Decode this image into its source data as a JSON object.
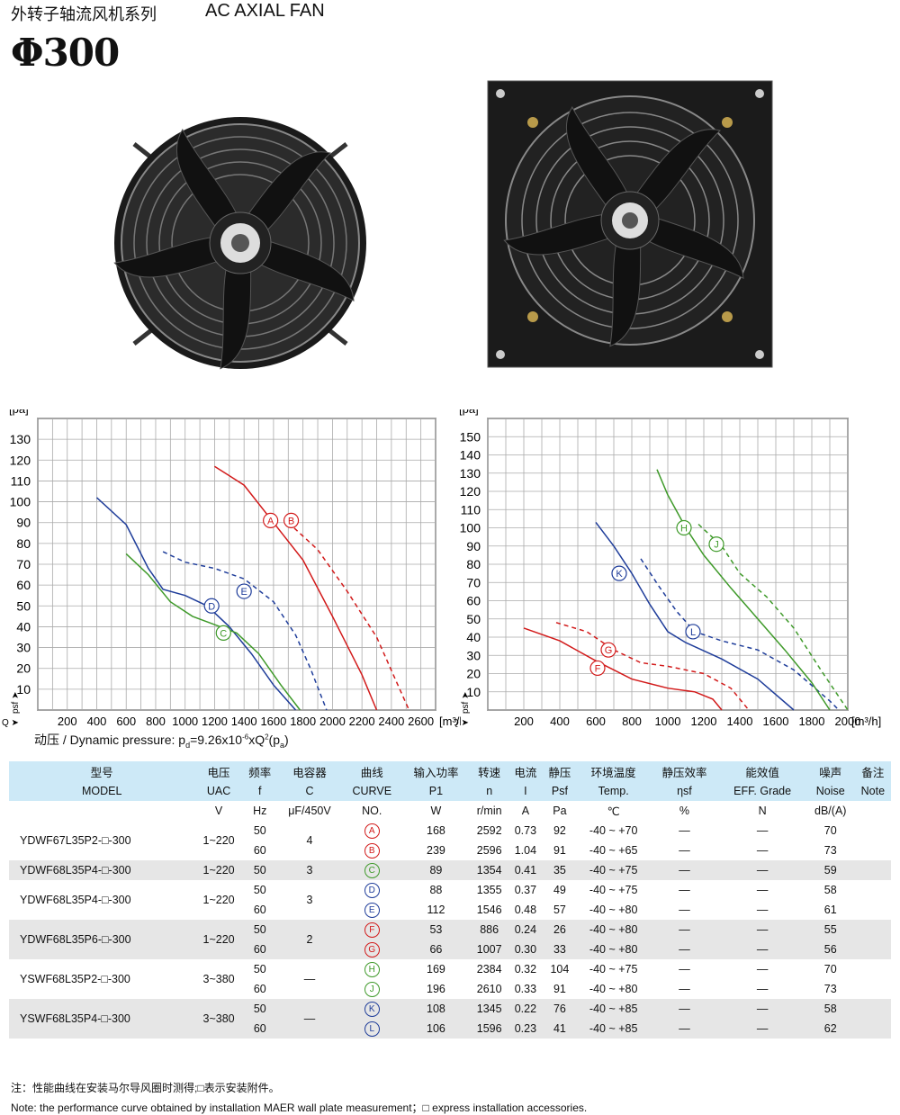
{
  "header": {
    "title_cn": "外转子轴流风机系列",
    "title_en": "AC AXIAL FAN",
    "size": "Φ300"
  },
  "dynamic_pressure": "动压 / Dynamic pressure:  p",
  "dynamic_pressure_sub": "d",
  "dynamic_pressure_formula": "=9.26x10",
  "dynamic_pressure_exp": "-6",
  "dynamic_pressure_formula2": "xQ",
  "dynamic_pressure_exp2": "2",
  "dynamic_pressure_tail": "(p",
  "dynamic_pressure_sub2": "a",
  "dynamic_pressure_end": ")",
  "chart_data": [
    {
      "type": "line",
      "ylabel": "[pa]",
      "ylabel_side": "psf",
      "xlabel": "[m³/h]",
      "xprefix": "Q",
      "yticks": [
        10,
        20,
        30,
        40,
        50,
        60,
        70,
        80,
        90,
        100,
        110,
        120,
        130
      ],
      "xticks": [
        200,
        400,
        600,
        800,
        1000,
        1200,
        1400,
        1600,
        1800,
        2000,
        2200,
        2400,
        2600
      ],
      "xlim": [
        0,
        2700
      ],
      "ylim": [
        0,
        140
      ],
      "series": [
        {
          "name": "A",
          "color": "#d21a1a",
          "dash": false,
          "points": [
            [
              1200,
              117
            ],
            [
              1400,
              108
            ],
            [
              1600,
              90
            ],
            [
              1800,
              72
            ],
            [
              2000,
              45
            ],
            [
              2200,
              17
            ],
            [
              2300,
              0
            ]
          ],
          "label_at": [
            1580,
            91
          ]
        },
        {
          "name": "B",
          "color": "#d21a1a",
          "dash": true,
          "points": [
            [
              1700,
              90
            ],
            [
              1900,
              77
            ],
            [
              2100,
              57
            ],
            [
              2300,
              35
            ],
            [
              2450,
              11
            ],
            [
              2520,
              0
            ]
          ],
          "label_at": [
            1720,
            91
          ]
        },
        {
          "name": "D",
          "color": "#1f3d9a",
          "dash": false,
          "points": [
            [
              400,
              102
            ],
            [
              600,
              89
            ],
            [
              750,
              68
            ],
            [
              850,
              58
            ],
            [
              1000,
              55
            ],
            [
              1150,
              50
            ],
            [
              1300,
              40
            ],
            [
              1450,
              27
            ],
            [
              1600,
              12
            ],
            [
              1750,
              0
            ]
          ],
          "label_at": [
            1180,
            50
          ]
        },
        {
          "name": "E",
          "color": "#1f3d9a",
          "dash": true,
          "points": [
            [
              850,
              76
            ],
            [
              1000,
              71
            ],
            [
              1200,
              68
            ],
            [
              1400,
              63
            ],
            [
              1600,
              52
            ],
            [
              1750,
              36
            ],
            [
              1850,
              20
            ],
            [
              1960,
              0
            ]
          ],
          "label_at": [
            1400,
            57
          ]
        },
        {
          "name": "C",
          "color": "#3f9a2a",
          "dash": false,
          "points": [
            [
              600,
              75
            ],
            [
              750,
              65
            ],
            [
              900,
              52
            ],
            [
              1050,
              45
            ],
            [
              1200,
              41
            ],
            [
              1350,
              37
            ],
            [
              1500,
              27
            ],
            [
              1650,
              12
            ],
            [
              1780,
              0
            ]
          ],
          "label_at": [
            1260,
            37
          ]
        }
      ]
    },
    {
      "type": "line",
      "ylabel": "[pa]",
      "ylabel_side": "psf",
      "xlabel": "[m³/h]",
      "xprefix": "Q",
      "yticks": [
        10,
        20,
        30,
        40,
        50,
        60,
        70,
        80,
        90,
        100,
        110,
        120,
        130,
        140,
        150
      ],
      "xticks": [
        200,
        400,
        600,
        800,
        1000,
        1200,
        1400,
        1600,
        1800,
        2000
      ],
      "xlim": [
        0,
        2000
      ],
      "ylim": [
        0,
        160
      ],
      "series": [
        {
          "name": "F",
          "color": "#d21a1a",
          "dash": false,
          "points": [
            [
              200,
              45
            ],
            [
              400,
              38
            ],
            [
              600,
              27
            ],
            [
              800,
              17
            ],
            [
              1000,
              12
            ],
            [
              1150,
              10
            ],
            [
              1250,
              6
            ],
            [
              1300,
              0
            ]
          ],
          "label_at": [
            610,
            23
          ]
        },
        {
          "name": "G",
          "color": "#d21a1a",
          "dash": true,
          "points": [
            [
              380,
              48
            ],
            [
              550,
              43
            ],
            [
              700,
              33
            ],
            [
              850,
              26
            ],
            [
              1000,
              24
            ],
            [
              1200,
              20
            ],
            [
              1350,
              12
            ],
            [
              1450,
              0
            ]
          ],
          "label_at": [
            670,
            33
          ]
        },
        {
          "name": "K",
          "color": "#1f3d9a",
          "dash": false,
          "points": [
            [
              600,
              103
            ],
            [
              700,
              90
            ],
            [
              800,
              75
            ],
            [
              900,
              58
            ],
            [
              1000,
              43
            ],
            [
              1100,
              37
            ],
            [
              1300,
              28
            ],
            [
              1500,
              17
            ],
            [
              1700,
              0
            ]
          ],
          "label_at": [
            730,
            75
          ]
        },
        {
          "name": "L",
          "color": "#1f3d9a",
          "dash": true,
          "points": [
            [
              850,
              83
            ],
            [
              950,
              68
            ],
            [
              1050,
              54
            ],
            [
              1150,
              43
            ],
            [
              1300,
              38
            ],
            [
              1500,
              33
            ],
            [
              1700,
              22
            ],
            [
              1900,
              5
            ],
            [
              1950,
              0
            ]
          ],
          "label_at": [
            1140,
            43
          ]
        },
        {
          "name": "H",
          "color": "#3f9a2a",
          "dash": false,
          "points": [
            [
              940,
              132
            ],
            [
              1000,
              118
            ],
            [
              1100,
              100
            ],
            [
              1200,
              85
            ],
            [
              1350,
              67
            ],
            [
              1500,
              50
            ],
            [
              1650,
              33
            ],
            [
              1800,
              15
            ],
            [
              1900,
              0
            ]
          ],
          "label_at": [
            1090,
            100
          ]
        },
        {
          "name": "J",
          "color": "#3f9a2a",
          "dash": true,
          "points": [
            [
              1170,
              102
            ],
            [
              1300,
              90
            ],
            [
              1400,
              75
            ],
            [
              1550,
              62
            ],
            [
              1700,
              45
            ],
            [
              1850,
              22
            ],
            [
              2000,
              0
            ]
          ],
          "label_at": [
            1270,
            91
          ]
        }
      ]
    }
  ],
  "table": {
    "head_cn": [
      "型号",
      "电压",
      "频率",
      "电容器",
      "曲线",
      "输入功率",
      "转速",
      "电流",
      "静压",
      "环境温度",
      "静压效率",
      "能效值",
      "噪声",
      "备注"
    ],
    "head_en": [
      "MODEL",
      "UAC",
      "f",
      "C",
      "CURVE",
      "P1",
      "n",
      "I",
      "Psf",
      "Temp.",
      "ηsf",
      "EFF. Grade",
      "Noise",
      "Note"
    ],
    "units": [
      "",
      "V",
      "Hz",
      "μF/450V",
      "NO.",
      "W",
      "r/min",
      "A",
      "Pa",
      "℃",
      "%",
      "N",
      "dB/(A)",
      ""
    ],
    "groups": [
      {
        "model": "YDWF67L35P2-□-300",
        "voltage": "1~220",
        "cap": "4",
        "grey": false,
        "rows": [
          [
            "50",
            "A",
            "168",
            "2592",
            "0.73",
            "92",
            "-40 ~ +70",
            "—",
            "—",
            "70"
          ],
          [
            "60",
            "B",
            "239",
            "2596",
            "1.04",
            "91",
            "-40 ~ +65",
            "—",
            "—",
            "73"
          ]
        ]
      },
      {
        "model": "YDWF68L35P4-□-300",
        "voltage": "1~220",
        "cap": "3",
        "grey": true,
        "rows": [
          [
            "50",
            "C",
            "89",
            "1354",
            "0.41",
            "35",
            "-40 ~ +75",
            "—",
            "—",
            "59"
          ]
        ]
      },
      {
        "model": "YDWF68L35P4-□-300",
        "voltage": "1~220",
        "cap": "3",
        "grey": false,
        "rows": [
          [
            "50",
            "D",
            "88",
            "1355",
            "0.37",
            "49",
            "-40 ~ +75",
            "—",
            "—",
            "58"
          ],
          [
            "60",
            "E",
            "112",
            "1546",
            "0.48",
            "57",
            "-40 ~ +80",
            "—",
            "—",
            "61"
          ]
        ]
      },
      {
        "model": "YDWF68L35P6-□-300",
        "voltage": "1~220",
        "cap": "2",
        "grey": true,
        "rows": [
          [
            "50",
            "F",
            "53",
            "886",
            "0.24",
            "26",
            "-40 ~ +80",
            "—",
            "—",
            "55"
          ],
          [
            "60",
            "G",
            "66",
            "1007",
            "0.30",
            "33",
            "-40 ~ +80",
            "—",
            "—",
            "56"
          ]
        ]
      },
      {
        "model": "YSWF68L35P2-□-300",
        "voltage": "3~380",
        "cap": "—",
        "grey": false,
        "rows": [
          [
            "50",
            "H",
            "169",
            "2384",
            "0.32",
            "104",
            "-40 ~ +75",
            "—",
            "—",
            "70"
          ],
          [
            "60",
            "J",
            "196",
            "2610",
            "0.33",
            "91",
            "-40 ~ +80",
            "—",
            "—",
            "73"
          ]
        ]
      },
      {
        "model": "YSWF68L35P4-□-300",
        "voltage": "3~380",
        "cap": "—",
        "grey": true,
        "rows": [
          [
            "50",
            "K",
            "108",
            "1345",
            "0.22",
            "76",
            "-40 ~ +85",
            "—",
            "—",
            "58"
          ],
          [
            "60",
            "L",
            "106",
            "1596",
            "0.23",
            "41",
            "-40 ~ +85",
            "—",
            "—",
            "62"
          ]
        ]
      }
    ]
  },
  "notes": {
    "cn": "注：性能曲线在安装马尔导风圈时测得;□表示安装附件。",
    "en": "Note: the performance curve obtained by installation MAER wall plate measurement；□ express installation accessories."
  }
}
